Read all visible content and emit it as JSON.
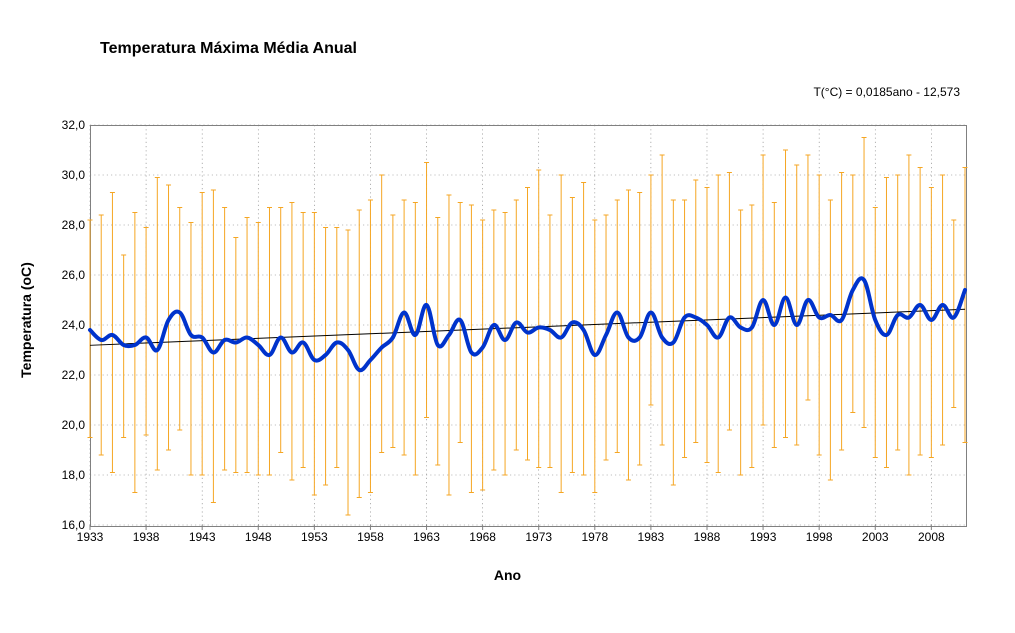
{
  "chart": {
    "type": "line",
    "title": "Temperatura Máxima Média Anual",
    "equation_text": "T(°C) = 0,0185ano - 12,573",
    "equation_fontsize": 12,
    "title_fontsize": 16,
    "title_fontweight": "bold",
    "xlabel": "Ano",
    "ylabel": "Temperatura (oC)",
    "label_fontsize": 14,
    "label_fontweight": "bold",
    "xlim": [
      1933,
      2011
    ],
    "ylim": [
      16.0,
      32.0
    ],
    "ytick_step": 2.0,
    "yticks": [
      16.0,
      18.0,
      20.0,
      22.0,
      24.0,
      26.0,
      28.0,
      30.0,
      32.0
    ],
    "ytick_format": "decimal_comma_1",
    "xtick_step": 5,
    "xtick_start": 1933,
    "xticks": [
      1933,
      1938,
      1943,
      1948,
      1953,
      1958,
      1963,
      1968,
      1973,
      1978,
      1983,
      1988,
      1993,
      1998,
      2003,
      2008
    ],
    "tick_fontsize": 12,
    "background_color": "#ffffff",
    "plot_border_color": "#808080",
    "grid_color": "#808080",
    "grid_style": "dotted",
    "grid_on": true,
    "error_bar_color": "#f5a623",
    "error_bar_width": 1,
    "error_bar_cap_width": 5,
    "main_line_color": "#0033cc",
    "main_line_width": 4,
    "trend_line_color": "#000000",
    "trend_line_width": 1,
    "trend_intercept": -12.573,
    "trend_slope": 0.0185,
    "years": [
      1933,
      1934,
      1935,
      1936,
      1937,
      1938,
      1939,
      1940,
      1941,
      1942,
      1943,
      1944,
      1945,
      1946,
      1947,
      1948,
      1949,
      1950,
      1951,
      1952,
      1953,
      1954,
      1955,
      1956,
      1957,
      1958,
      1959,
      1960,
      1961,
      1962,
      1963,
      1964,
      1965,
      1966,
      1967,
      1968,
      1969,
      1970,
      1971,
      1972,
      1973,
      1974,
      1975,
      1976,
      1977,
      1978,
      1979,
      1980,
      1981,
      1982,
      1983,
      1984,
      1985,
      1986,
      1987,
      1988,
      1989,
      1990,
      1991,
      1992,
      1993,
      1994,
      1995,
      1996,
      1997,
      1998,
      1999,
      2000,
      2001,
      2002,
      2003,
      2004,
      2005,
      2006,
      2007,
      2008,
      2009,
      2010,
      2011
    ],
    "mean_values": [
      23.8,
      23.4,
      23.6,
      23.2,
      23.2,
      23.5,
      23.0,
      24.2,
      24.5,
      23.6,
      23.5,
      22.9,
      23.4,
      23.3,
      23.5,
      23.2,
      22.8,
      23.5,
      22.9,
      23.3,
      22.6,
      22.8,
      23.3,
      23.0,
      22.2,
      22.6,
      23.1,
      23.5,
      24.5,
      23.6,
      24.8,
      23.2,
      23.6,
      24.2,
      22.9,
      23.1,
      24.0,
      23.4,
      24.1,
      23.7,
      23.9,
      23.8,
      23.5,
      24.1,
      23.8,
      22.8,
      23.6,
      24.5,
      23.5,
      23.5,
      24.5,
      23.5,
      23.3,
      24.3,
      24.3,
      24.0,
      23.5,
      24.3,
      23.9,
      23.9,
      25.0,
      24.0,
      25.1,
      24.0,
      25.0,
      24.3,
      24.4,
      24.2,
      25.4,
      25.8,
      24.2,
      23.6,
      24.4,
      24.3,
      24.8,
      24.2,
      24.8,
      24.3,
      25.4
    ],
    "upper_values": [
      28.2,
      28.4,
      29.3,
      26.8,
      28.5,
      27.9,
      29.9,
      29.6,
      28.7,
      28.1,
      29.3,
      29.4,
      28.7,
      27.5,
      28.3,
      28.1,
      28.7,
      28.7,
      28.9,
      28.5,
      28.5,
      27.9,
      27.9,
      27.8,
      28.6,
      29.0,
      30.0,
      28.4,
      29.0,
      28.9,
      30.5,
      28.3,
      29.2,
      28.9,
      28.8,
      28.2,
      28.6,
      28.5,
      29.0,
      29.5,
      30.2,
      28.4,
      30.0,
      29.1,
      29.7,
      28.2,
      28.4,
      29.0,
      29.4,
      29.3,
      30.0,
      30.8,
      29.0,
      29.0,
      29.8,
      29.5,
      30.0,
      30.1,
      28.6,
      28.8,
      30.8,
      28.9,
      31.0,
      30.4,
      30.8,
      30.0,
      29.0,
      30.1,
      30.0,
      31.5,
      28.7,
      29.9,
      30.0,
      30.8,
      30.3,
      29.5,
      30.0,
      28.2,
      30.3
    ],
    "lower_values": [
      19.5,
      18.8,
      18.1,
      19.5,
      17.3,
      19.6,
      18.2,
      19.0,
      19.8,
      18.0,
      18.0,
      16.9,
      18.2,
      18.1,
      18.1,
      18.0,
      18.0,
      18.9,
      17.8,
      18.3,
      17.2,
      17.6,
      18.3,
      16.4,
      17.1,
      17.3,
      18.9,
      19.1,
      18.8,
      18.0,
      20.3,
      18.4,
      17.2,
      19.3,
      17.3,
      17.4,
      18.2,
      18.0,
      19.0,
      18.6,
      18.3,
      18.3,
      17.3,
      18.1,
      18.0,
      17.3,
      18.6,
      18.9,
      17.8,
      18.4,
      20.8,
      19.2,
      17.6,
      18.7,
      19.3,
      18.5,
      18.1,
      19.8,
      18.0,
      18.3,
      20.0,
      19.1,
      19.5,
      19.2,
      21.0,
      18.8,
      17.8,
      19.0,
      20.5,
      19.9,
      18.7,
      18.3,
      19.0,
      18.0,
      18.8,
      18.7,
      19.2,
      20.7,
      19.3
    ]
  }
}
